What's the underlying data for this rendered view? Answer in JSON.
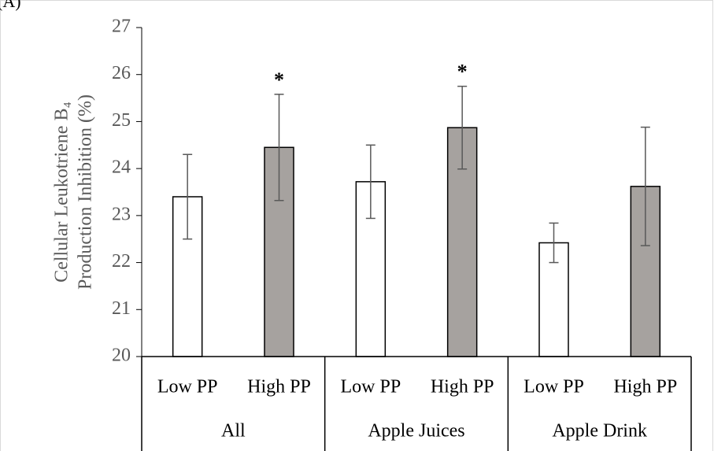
{
  "chart_data": {
    "type": "bar",
    "panel_label": "(A)",
    "ylabel": [
      "Cellular Leukotriene B₄",
      "Production Inhibition (%)"
    ],
    "groups": [
      "All",
      "Apple Juices",
      "Apple Drink"
    ],
    "categories": [
      "Low PP",
      "High PP",
      "Low PP",
      "High PP",
      "Low PP",
      "High PP"
    ],
    "values": [
      23.4,
      24.45,
      23.72,
      24.87,
      22.42,
      23.62
    ],
    "errors": [
      0.9,
      1.13,
      0.78,
      0.88,
      0.42,
      1.26
    ],
    "colors": [
      "#ffffff",
      "#a6a29f",
      "#ffffff",
      "#a6a29f",
      "#ffffff",
      "#a6a29f"
    ],
    "annotations": [
      {
        "index": 1,
        "text": "*"
      },
      {
        "index": 3,
        "text": "*"
      }
    ],
    "ylim": [
      20,
      27
    ],
    "yticks": [
      20,
      21,
      22,
      23,
      24,
      25,
      26,
      27
    ],
    "grid": false
  }
}
